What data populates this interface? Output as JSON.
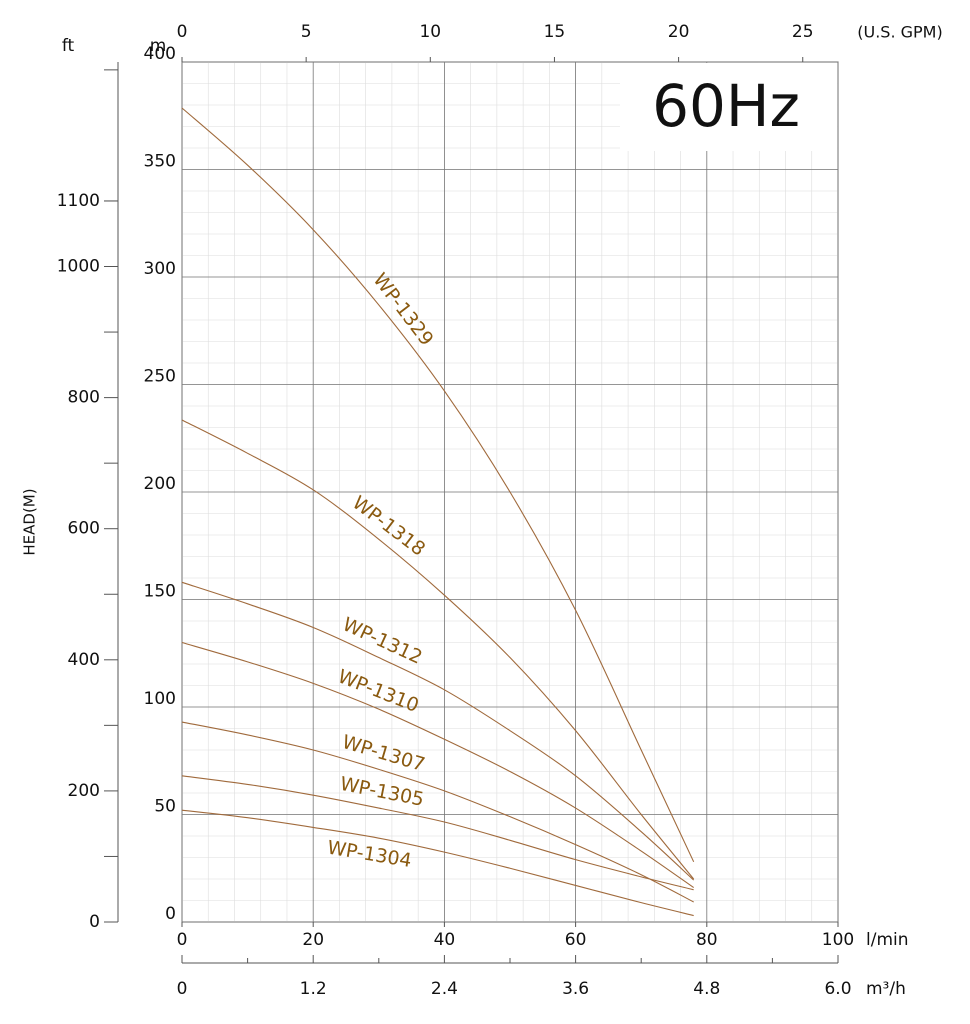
{
  "chart_data": {
    "type": "line",
    "annotation": "60Hz",
    "y_label": "HEAD(M)",
    "y_unit": "m",
    "y2_label": "ft",
    "x_label": "l/min",
    "x2_label": "(U.S. GPM)",
    "x3_label": "m³/h",
    "x": [
      0,
      10,
      20,
      30,
      40,
      50,
      60,
      70,
      78
    ],
    "xlim": [
      0,
      100
    ],
    "xticks": [
      0,
      20,
      40,
      60,
      80,
      100
    ],
    "x2lim": [
      0,
      26.42
    ],
    "x2ticks": [
      0,
      5,
      10,
      15,
      20,
      25
    ],
    "x3lim": [
      0,
      6
    ],
    "x3ticks": [
      0,
      1.2,
      2.4,
      3.6,
      4.8,
      {
        "value": 6,
        "label": "6.0"
      }
    ],
    "ylim": [
      0,
      400
    ],
    "yticks": [
      0,
      50,
      100,
      150,
      200,
      250,
      300,
      350,
      400
    ],
    "y2lim": [
      0,
      1312
    ],
    "y2ticks": [
      0,
      200,
      400,
      600,
      800,
      1000,
      1100
    ],
    "grid": true,
    "series": [
      {
        "name": "WP-1329",
        "color": "#a06a3c",
        "values": [
          378.6,
          352,
          322,
          287,
          247,
          200,
          145,
          80,
          28
        ]
      },
      {
        "name": "WP-1318",
        "color": "#a06a3c",
        "values": [
          233.5,
          218,
          201,
          178,
          152,
          123,
          89,
          50,
          20
        ]
      },
      {
        "name": "WP-1312",
        "color": "#a06a3c",
        "values": [
          158,
          148,
          137,
          123,
          108,
          89,
          68,
          42,
          19.5
        ]
      },
      {
        "name": "WP-1310",
        "color": "#a06a3c",
        "values": [
          130,
          121,
          111,
          99,
          85,
          70,
          53,
          33,
          16
        ]
      },
      {
        "name": "WP-1307",
        "color": "#a06a3c",
        "values": [
          93,
          87,
          80,
          71,
          61,
          49,
          36,
          22,
          9.3
        ]
      },
      {
        "name": "WP-1305",
        "color": "#a06a3c",
        "values": [
          68,
          64,
          59,
          53,
          46.5,
          38,
          29,
          21,
          15
        ]
      },
      {
        "name": "WP-1304",
        "color": "#a06a3c",
        "values": [
          52,
          48.5,
          44,
          39,
          32.5,
          25,
          17,
          9,
          3
        ]
      }
    ]
  }
}
